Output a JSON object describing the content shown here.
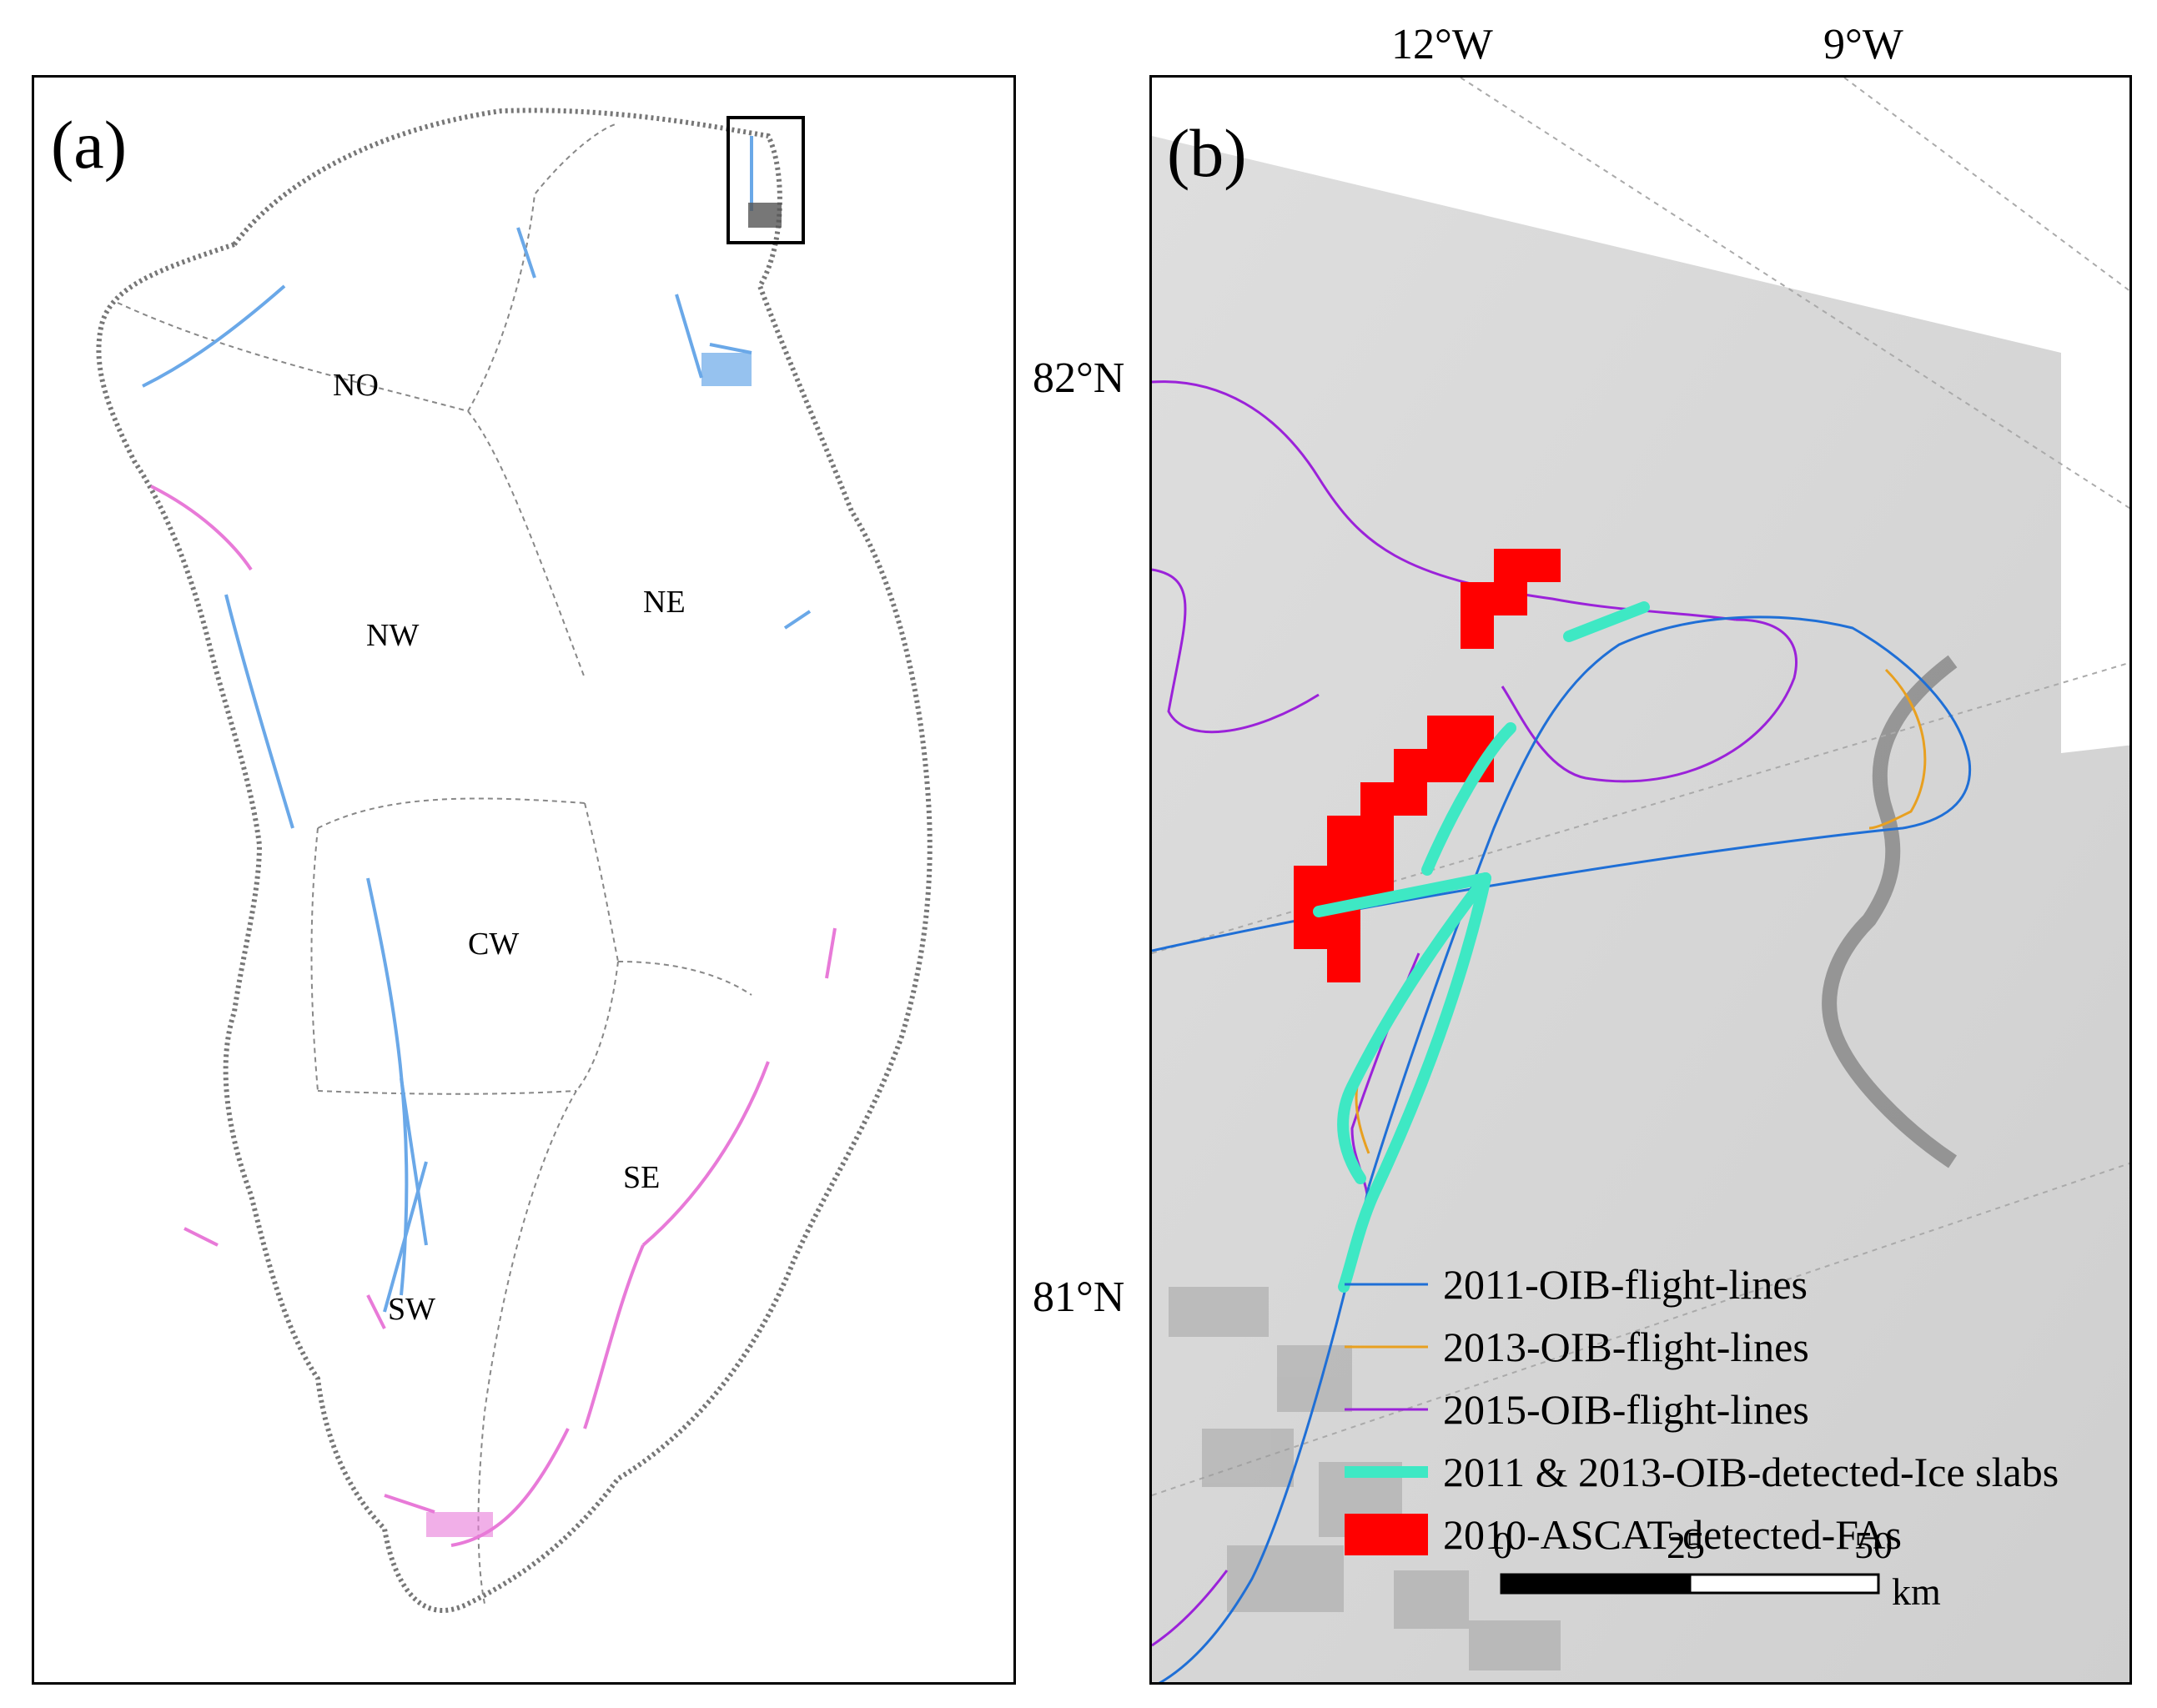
{
  "panel_a": {
    "label": "(a)",
    "regions": [
      "NO",
      "NE",
      "NW",
      "CW",
      "SE",
      "SW"
    ]
  },
  "panel_b": {
    "label": "(b)",
    "lon_labels": [
      "12°W",
      "9°W"
    ],
    "lat_labels": [
      "82°N",
      "81°N"
    ],
    "legend": [
      {
        "label": "2011-OIB-flight-lines",
        "color": "#1f6fd6"
      },
      {
        "label": "2013-OIB-flight-lines",
        "color": "#e8a020"
      },
      {
        "label": "2015-OIB-flight-lines",
        "color": "#9b22d9"
      },
      {
        "label": "2011 & 2013-OIB-detected-Ice slabs",
        "color": "#3ee8c4"
      },
      {
        "label": "2010-ASCAT-detected-FAs",
        "color": "#ff0000"
      }
    ],
    "scale": {
      "ticks": [
        "0",
        "25",
        "50"
      ],
      "unit": "km"
    }
  },
  "colors": {
    "ice_slab_blue": "#6aa8e8",
    "ice_slab_pink": "#e87ad8",
    "coast_gray": "#777777"
  }
}
